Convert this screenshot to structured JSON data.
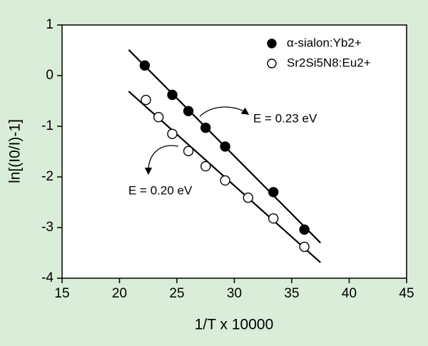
{
  "chart_data": {
    "type": "scatter",
    "x_label": "1/T x 10000",
    "y_label": "ln[(I0/I)-1]",
    "xlim": [
      15,
      45
    ],
    "ylim": [
      -4,
      1
    ],
    "xticks": [
      15,
      20,
      25,
      30,
      35,
      40,
      45
    ],
    "yticks": [
      -4,
      -3,
      -2,
      -1,
      0,
      1
    ],
    "legend_position": "upper right",
    "series": [
      {
        "name": "α-sialon:Yb2+",
        "color": "#000000",
        "marker": "filled",
        "x": [
          22.2,
          24.6,
          26.0,
          27.5,
          29.2,
          33.4,
          36.1
        ],
        "values": [
          0.2,
          -0.38,
          -0.7,
          -1.03,
          -1.4,
          -2.3,
          -3.04
        ],
        "fit": {
          "x": [
            20.8,
            37.5
          ],
          "values": [
            0.51,
            -3.3
          ]
        }
      },
      {
        "name": "Sr2Si5N8:Eu2+",
        "color": "#000000",
        "marker": "open",
        "x": [
          22.3,
          23.4,
          24.6,
          26.0,
          27.5,
          29.2,
          31.2,
          33.4,
          36.1
        ],
        "values": [
          -0.48,
          -0.82,
          -1.15,
          -1.49,
          -1.79,
          -2.07,
          -2.41,
          -2.82,
          -3.38
        ],
        "fit": {
          "x": [
            20.8,
            37.5
          ],
          "values": [
            -0.31,
            -3.69
          ]
        }
      }
    ],
    "annotations": [
      "E = 0.23 eV",
      "E = 0.20 eV"
    ]
  }
}
